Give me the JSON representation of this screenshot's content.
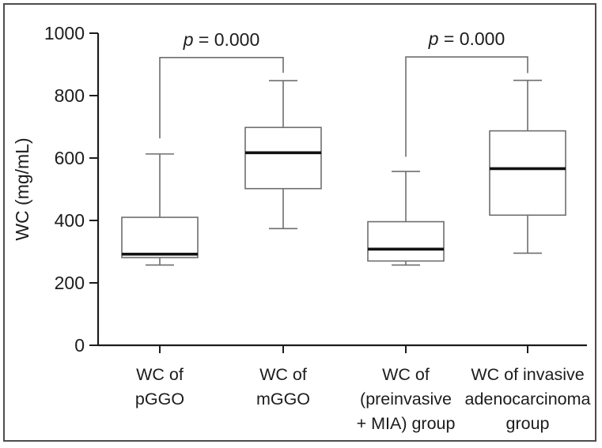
{
  "figure": {
    "border_color": "#4d4d4d",
    "background": "#ffffff"
  },
  "chart_data": {
    "type": "box",
    "title": "",
    "xlabel": "",
    "ylabel": "WC (mg/mL)",
    "ylim": [
      0,
      1000
    ],
    "yticks": [
      0,
      200,
      400,
      600,
      800,
      1000
    ],
    "grid": false,
    "legend": false,
    "categories": [
      [
        "WC of",
        "pGGO"
      ],
      [
        "WC of",
        "mGGO"
      ],
      [
        "WC of",
        "(preinvasive",
        "+ MIA) group"
      ],
      [
        "WC of invasive",
        "adenocarcinoma",
        "group"
      ]
    ],
    "series": [
      {
        "name": "WC of pGGO",
        "whislo": 257,
        "q1": 281,
        "med": 292,
        "q3": 410,
        "whishi": 613
      },
      {
        "name": "WC of mGGO",
        "whislo": 374,
        "q1": 502,
        "med": 617,
        "q3": 698,
        "whishi": 848
      },
      {
        "name": "WC of (preinvasive + MIA) group",
        "whislo": 257,
        "q1": 270,
        "med": 308,
        "q3": 396,
        "whishi": 557
      },
      {
        "name": "WC of invasive adenocarcinoma group",
        "whislo": 295,
        "q1": 417,
        "med": 566,
        "q3": 687,
        "whishi": 849
      }
    ],
    "annotations": [
      {
        "label": "p = 0.000",
        "from": 0,
        "to": 1,
        "bar_value": 922,
        "from_end_value": 663,
        "to_end_value": 873
      },
      {
        "label": "p = 0.000",
        "from": 2,
        "to": 3,
        "bar_value": 924,
        "from_end_value": 604,
        "to_end_value": 872
      }
    ],
    "colors": {
      "box_stroke": "#6e6e6e",
      "whisker": "#6e6e6e",
      "annotation_line": "#6e6e6e",
      "median": "#111111",
      "axis": "#1c1c1c",
      "text": "#1c1c1c",
      "box_fill": "#ffffff"
    }
  }
}
